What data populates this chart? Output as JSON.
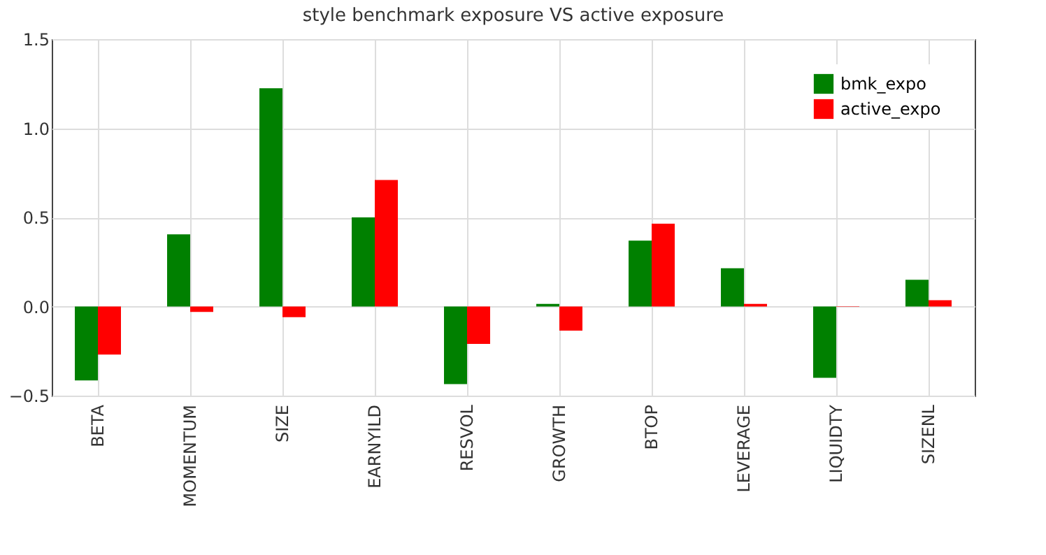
{
  "chart_data": {
    "type": "bar",
    "title": "style benchmark exposure VS active exposure",
    "categories": [
      "BETA",
      "MOMENTUM",
      "SIZE",
      "EARNYILD",
      "RESVOL",
      "GROWTH",
      "BTOP",
      "LEVERAGE",
      "LIQUIDTY",
      "SIZENL"
    ],
    "series": [
      {
        "name": "bmk_expo",
        "color": "#008000",
        "values": [
          -0.415,
          0.405,
          1.225,
          0.5,
          -0.435,
          0.015,
          0.37,
          0.215,
          -0.4,
          0.15
        ]
      },
      {
        "name": "active_expo",
        "color": "#ff0000",
        "values": [
          -0.27,
          -0.03,
          -0.06,
          0.71,
          -0.21,
          -0.135,
          0.465,
          0.015,
          0.002,
          0.035
        ]
      }
    ],
    "ylim": [
      -0.5,
      1.5
    ],
    "yticks": [
      {
        "value": -0.5,
        "label": "−0.5"
      },
      {
        "value": 0,
        "label": "0.0"
      },
      {
        "value": 0.5,
        "label": "0.5"
      },
      {
        "value": 1,
        "label": "1.0"
      },
      {
        "value": 1.5,
        "label": "1.5"
      }
    ],
    "grid": true,
    "legend": "top right"
  }
}
